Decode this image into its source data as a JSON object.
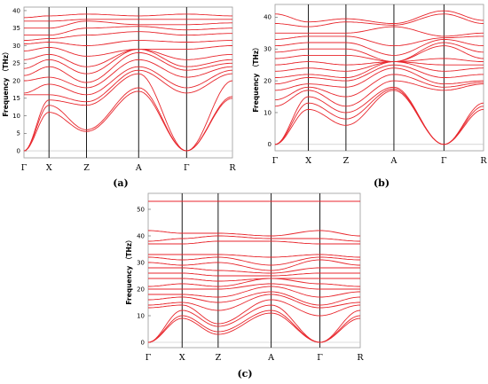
{
  "colors": {
    "band": "#e8262c",
    "axis": "#000000",
    "frame": "#9a9a9a"
  },
  "chart_data": [
    {
      "panel": "(a)",
      "type": "line",
      "ylabel": "Frequency （THz）",
      "ylim": [
        -2,
        41
      ],
      "yticks": [
        0,
        5,
        10,
        15,
        20,
        25,
        30,
        35,
        40
      ],
      "kpoints": [
        {
          "label": "Γ",
          "pos": 0.0
        },
        {
          "label": "X",
          "pos": 0.12
        },
        {
          "label": "Z",
          "pos": 0.3
        },
        {
          "label": "A",
          "pos": 0.55
        },
        {
          "label": "Γ",
          "pos": 0.78
        },
        {
          "label": "R",
          "pos": 1.0
        }
      ],
      "series": [
        {
          "values": [
            0,
            11,
            5.5,
            17,
            0,
            15
          ]
        },
        {
          "values": [
            0,
            13,
            6,
            18,
            0,
            15.5
          ]
        },
        {
          "values": [
            0,
            14.5,
            13,
            22,
            0,
            20
          ]
        },
        {
          "values": [
            16,
            16,
            14,
            23,
            16.5,
            22
          ]
        },
        {
          "values": [
            16.5,
            19,
            16,
            24,
            18,
            23
          ]
        },
        {
          "values": [
            20,
            21,
            18,
            26,
            21,
            24
          ]
        },
        {
          "values": [
            21.5,
            24,
            19.5,
            28,
            23,
            25
          ]
        },
        {
          "values": [
            23.5,
            26,
            22,
            29,
            24,
            26
          ]
        },
        {
          "values": [
            26,
            27.5,
            24,
            29,
            26,
            27.5
          ]
        },
        {
          "values": [
            28.5,
            29.5,
            27,
            29,
            29,
            30
          ]
        },
        {
          "values": [
            30.5,
            31,
            30,
            31.5,
            31,
            31.5
          ]
        },
        {
          "values": [
            31.5,
            32,
            33,
            34,
            33,
            33.5
          ]
        },
        {
          "values": [
            33,
            33,
            35,
            35.5,
            34.5,
            35
          ]
        },
        {
          "values": [
            35,
            35,
            37,
            36,
            36,
            36.5
          ]
        },
        {
          "values": [
            37,
            37,
            37.5,
            37.5,
            37.5,
            37.5
          ]
        },
        {
          "values": [
            38,
            38.5,
            39,
            38.5,
            39,
            38.5
          ]
        }
      ]
    },
    {
      "panel": "(b)",
      "type": "line",
      "ylabel": "Frequency （THz）",
      "ylim": [
        -2,
        44
      ],
      "yticks": [
        0,
        10,
        20,
        30,
        40
      ],
      "kpoints": [
        {
          "label": "Γ",
          "pos": 0.0
        },
        {
          "label": "X",
          "pos": 0.16
        },
        {
          "label": "Z",
          "pos": 0.34
        },
        {
          "label": "A",
          "pos": 0.57
        },
        {
          "label": "Γ",
          "pos": 0.81
        },
        {
          "label": "R",
          "pos": 1.0
        }
      ],
      "series": [
        {
          "values": [
            0,
            11,
            6,
            17,
            0,
            11
          ]
        },
        {
          "values": [
            0,
            13,
            8,
            17.5,
            0,
            12
          ]
        },
        {
          "values": [
            0,
            15,
            10,
            18,
            0,
            13
          ]
        },
        {
          "values": [
            12,
            17,
            12,
            20,
            17,
            19
          ]
        },
        {
          "values": [
            14,
            18,
            15,
            22,
            18,
            19.5
          ]
        },
        {
          "values": [
            17,
            19,
            18,
            24,
            19,
            20
          ]
        },
        {
          "values": [
            19,
            21,
            20,
            25,
            21,
            22
          ]
        },
        {
          "values": [
            21,
            22,
            21,
            26,
            23,
            24
          ]
        },
        {
          "values": [
            23,
            24,
            23,
            26,
            25,
            25
          ]
        },
        {
          "values": [
            25,
            26,
            25,
            26,
            27,
            26
          ]
        },
        {
          "values": [
            27,
            28,
            28,
            26,
            31,
            27
          ]
        },
        {
          "values": [
            29,
            30,
            30,
            26,
            32,
            29
          ]
        },
        {
          "values": [
            31,
            32,
            32,
            28,
            33,
            31
          ]
        },
        {
          "values": [
            33,
            34,
            34,
            31,
            33.5,
            34
          ]
        },
        {
          "values": [
            35,
            35,
            35,
            37,
            34,
            35
          ]
        },
        {
          "values": [
            38,
            37,
            38.5,
            37.5,
            41,
            38
          ]
        },
        {
          "values": [
            41,
            38.5,
            39.5,
            38,
            42,
            39
          ]
        }
      ]
    },
    {
      "panel": "(c)",
      "type": "line",
      "ylabel": "Frequency （THz）",
      "ylim": [
        -2,
        56
      ],
      "yticks": [
        0,
        10,
        20,
        30,
        40,
        50
      ],
      "kpoints": [
        {
          "label": "Γ",
          "pos": 0.0
        },
        {
          "label": "X",
          "pos": 0.16
        },
        {
          "label": "Z",
          "pos": 0.33
        },
        {
          "label": "A",
          "pos": 0.58
        },
        {
          "label": "Γ",
          "pos": 0.81
        },
        {
          "label": "R",
          "pos": 1.0
        }
      ],
      "series": [
        {
          "values": [
            0,
            9,
            3,
            11,
            0,
            9
          ]
        },
        {
          "values": [
            0,
            10,
            4,
            12,
            0,
            10
          ]
        },
        {
          "values": [
            0,
            12,
            6,
            14,
            0,
            12
          ]
        },
        {
          "values": [
            13,
            14,
            7,
            16,
            10,
            14
          ]
        },
        {
          "values": [
            14,
            15,
            12,
            18,
            13,
            15
          ]
        },
        {
          "values": [
            16,
            17,
            15,
            19,
            14,
            17
          ]
        },
        {
          "values": [
            18,
            18,
            17,
            21,
            17,
            19
          ]
        },
        {
          "values": [
            20,
            20,
            20,
            22,
            20,
            20
          ]
        },
        {
          "values": [
            21,
            22,
            21,
            24,
            22,
            21
          ]
        },
        {
          "values": [
            24,
            24,
            23,
            24,
            24,
            24
          ]
        },
        {
          "values": [
            26,
            26,
            25,
            25,
            26,
            26
          ]
        },
        {
          "values": [
            28,
            28,
            27,
            26,
            28,
            28
          ]
        },
        {
          "values": [
            30,
            29,
            30,
            27,
            31,
            29
          ]
        },
        {
          "values": [
            32,
            31,
            32,
            29,
            32,
            31
          ]
        },
        {
          "values": [
            33,
            33,
            33,
            32,
            33,
            32
          ]
        },
        {
          "values": [
            37,
            37,
            38,
            38,
            37,
            37
          ]
        },
        {
          "values": [
            38,
            39,
            40,
            39,
            39,
            38
          ]
        },
        {
          "values": [
            42,
            41,
            41,
            40,
            42,
            40
          ]
        },
        {
          "values": [
            53,
            53,
            53,
            53,
            53,
            53
          ]
        }
      ]
    }
  ]
}
